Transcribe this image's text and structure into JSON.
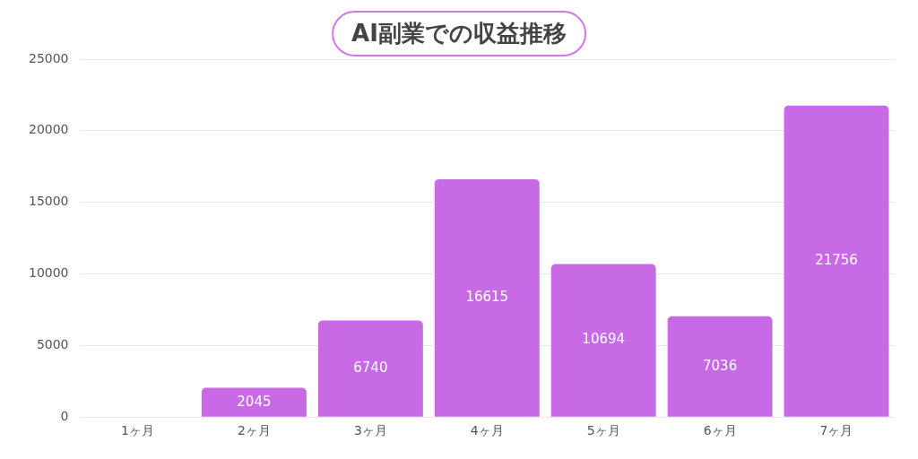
{
  "chart_data": {
    "type": "bar",
    "title": "AI副業での収益推移",
    "categories": [
      "1ヶ月",
      "2ヶ月",
      "3ヶ月",
      "4ヶ月",
      "5ヶ月",
      "6ヶ月",
      "7ヶ月"
    ],
    "values": [
      0,
      2045,
      6740,
      16615,
      10694,
      7036,
      21756
    ],
    "value_labels": [
      null,
      "2045",
      "6740",
      "16615",
      "10694",
      "7036",
      "21756"
    ],
    "color": "#c86ae6",
    "ylim": [
      0,
      25000
    ],
    "yticks": [
      0,
      5000,
      10000,
      15000,
      20000,
      25000
    ],
    "grid": "y"
  }
}
